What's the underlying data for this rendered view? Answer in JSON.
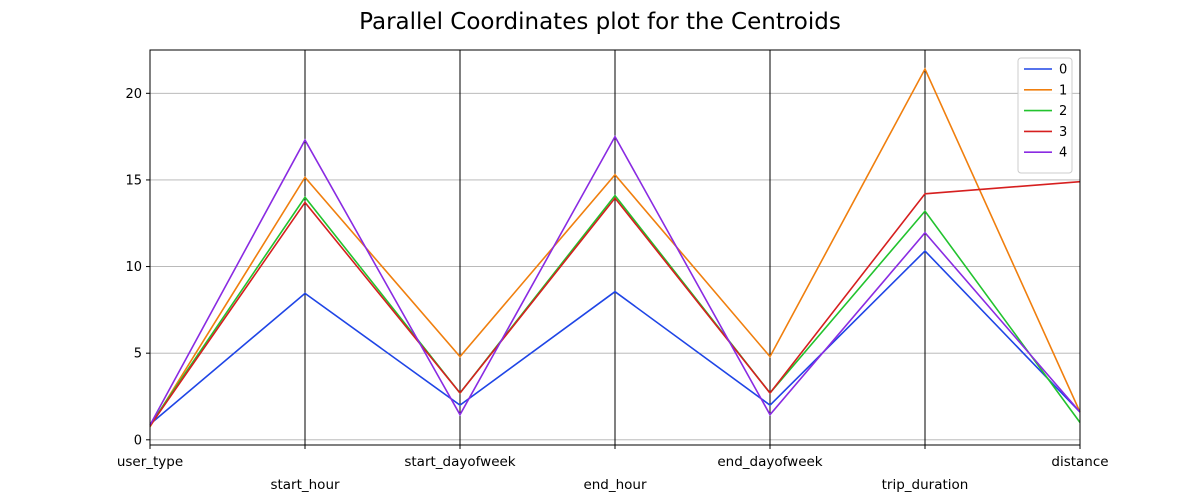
{
  "chart_data": {
    "type": "line",
    "title": "Parallel Coordinates plot for the Centroids",
    "categories": [
      "user_type",
      "start_hour",
      "start_dayofweek",
      "end_hour",
      "end_dayofweek",
      "trip_duration",
      "distance"
    ],
    "ylim": [
      -0.3,
      22.5
    ],
    "yticks": [
      0,
      5,
      10,
      15,
      20
    ],
    "grid": true,
    "legend_position": "top-right",
    "series": [
      {
        "name": "0",
        "color": "#1f45e6",
        "values": [
          0.9,
          8.45,
          2.0,
          8.55,
          2.0,
          10.9,
          1.6
        ]
      },
      {
        "name": "1",
        "color": "#f07f0e",
        "values": [
          0.75,
          15.15,
          4.8,
          15.3,
          4.8,
          21.4,
          1.6
        ]
      },
      {
        "name": "2",
        "color": "#22c32e",
        "values": [
          0.85,
          14.0,
          2.7,
          14.1,
          2.7,
          13.2,
          1.0
        ]
      },
      {
        "name": "3",
        "color": "#d61f1f",
        "values": [
          0.8,
          13.7,
          2.7,
          13.95,
          2.7,
          14.2,
          14.9
        ]
      },
      {
        "name": "4",
        "color": "#8a2be2",
        "values": [
          0.85,
          17.3,
          1.45,
          17.5,
          1.45,
          11.95,
          1.6
        ]
      }
    ]
  }
}
